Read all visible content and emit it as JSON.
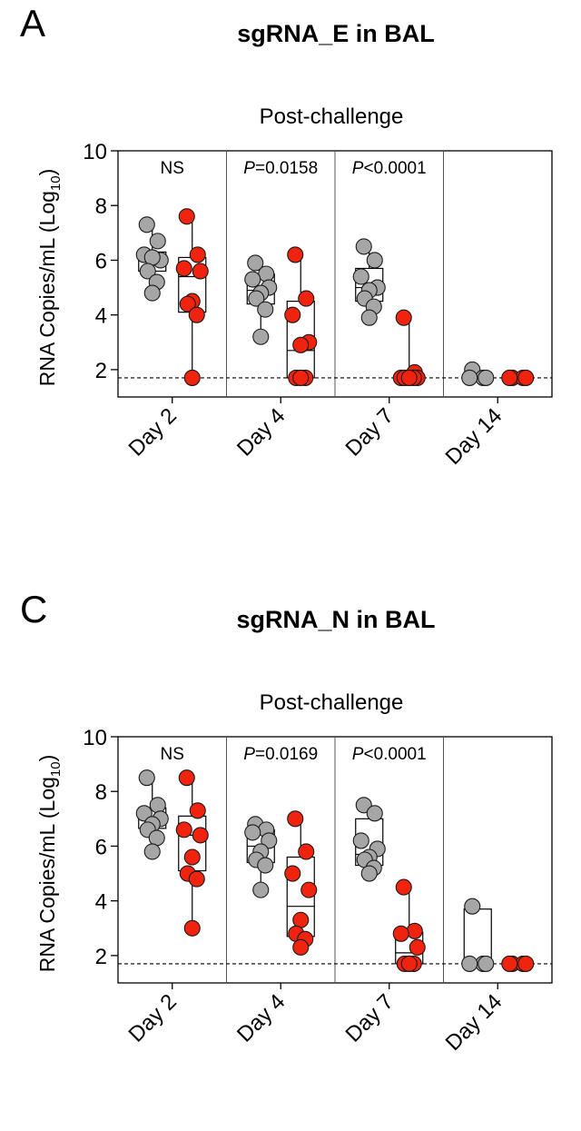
{
  "colors": {
    "vehicle": "#a6a6a6",
    "vaccine": "#f0230f",
    "stroke": "#1a1a1a"
  },
  "chart_data": [
    {
      "type": "scatter",
      "panel_label": "A",
      "title": "sgRNA_E in BAL",
      "subtitle": "Post-challenge",
      "ylabel": "RNA Copies/mL (Log",
      "ylabel_sub": "10",
      "ylabel_close": ")",
      "ylim": [
        1,
        10
      ],
      "yticks": [
        "2",
        "4",
        "6",
        "8",
        "10"
      ],
      "limit_of_detection": 1.7,
      "categories": [
        "Day 2",
        "Day 4",
        "Day 7",
        "Day 14"
      ],
      "stats": [
        {
          "italic": "",
          "text": "NS"
        },
        {
          "italic": "P",
          "text": "=0.0158"
        },
        {
          "italic": "P",
          "text": "<0.0001"
        },
        {
          "italic": "",
          "text": ""
        }
      ],
      "series": [
        {
          "name": "gray",
          "color": "#a6a6a6",
          "values": [
            [
              7.3,
              6.7,
              6.2,
              6.0,
              6.1,
              5.6,
              5.2,
              4.8
            ],
            [
              5.9,
              5.5,
              5.3,
              5.0,
              4.8,
              4.6,
              4.2,
              3.2
            ],
            [
              6.5,
              6.0,
              5.4,
              5.0,
              4.9,
              4.6,
              4.3,
              3.9
            ],
            [
              2.0,
              1.7,
              1.7,
              1.7
            ]
          ],
          "box": [
            {
              "min": 4.8,
              "q1": 5.6,
              "median": 6.0,
              "q3": 6.3,
              "max": 7.3
            },
            {
              "min": 3.2,
              "q1": 4.4,
              "median": 4.9,
              "q3": 5.5,
              "max": 5.9
            },
            {
              "min": 3.9,
              "q1": 4.5,
              "median": 5.0,
              "q3": 5.7,
              "max": 6.5
            },
            {
              "min": 1.7,
              "q1": 1.7,
              "median": 1.7,
              "q3": 1.9,
              "max": 2.0
            }
          ]
        },
        {
          "name": "red",
          "color": "#f0230f",
          "values": [
            [
              7.6,
              6.2,
              5.7,
              5.6,
              4.5,
              4.4,
              4.0,
              1.7
            ],
            [
              6.2,
              4.6,
              4.0,
              3.0,
              2.9,
              1.7,
              1.7,
              1.7
            ],
            [
              3.9,
              1.9,
              1.7,
              1.7,
              1.7,
              1.7,
              1.7,
              1.7
            ],
            [
              1.7,
              1.7,
              1.7,
              1.7
            ]
          ],
          "box": [
            {
              "min": 1.7,
              "q1": 4.1,
              "median": 5.4,
              "q3": 6.1,
              "max": 7.6
            },
            {
              "min": 1.7,
              "q1": 1.7,
              "median": 2.7,
              "q3": 4.5,
              "max": 6.2
            },
            {
              "min": 1.7,
              "q1": 1.7,
              "median": 1.7,
              "q3": 1.85,
              "max": 3.9
            },
            {
              "min": 1.7,
              "q1": 1.7,
              "median": 1.7,
              "q3": 1.7,
              "max": 1.7
            }
          ]
        }
      ]
    },
    {
      "type": "scatter",
      "panel_label": "C",
      "title": "sgRNA_N in BAL",
      "subtitle": "Post-challenge",
      "ylabel": "RNA Copies/mL (Log",
      "ylabel_sub": "10",
      "ylabel_close": ")",
      "ylim": [
        1,
        10
      ],
      "yticks": [
        "2",
        "4",
        "6",
        "8",
        "10"
      ],
      "limit_of_detection": 1.7,
      "categories": [
        "Day 2",
        "Day 4",
        "Day 7",
        "Day 14"
      ],
      "stats": [
        {
          "italic": "",
          "text": "NS"
        },
        {
          "italic": "P",
          "text": "=0.0169"
        },
        {
          "italic": "P",
          "text": "<0.0001"
        },
        {
          "italic": "",
          "text": ""
        }
      ],
      "series": [
        {
          "name": "gray",
          "color": "#a6a6a6",
          "values": [
            [
              8.5,
              7.5,
              7.2,
              7.0,
              6.8,
              6.6,
              6.3,
              5.8
            ],
            [
              6.8,
              6.6,
              6.5,
              6.2,
              5.8,
              5.5,
              5.3,
              4.4
            ],
            [
              7.5,
              7.2,
              6.2,
              5.9,
              5.6,
              5.5,
              5.2,
              5.0
            ],
            [
              3.8,
              1.7,
              1.7,
              1.7
            ]
          ],
          "box": [
            {
              "min": 5.8,
              "q1": 6.65,
              "median": 7.0,
              "q3": 7.4,
              "max": 8.5
            },
            {
              "min": 4.4,
              "q1": 5.4,
              "median": 6.0,
              "q3": 6.6,
              "max": 6.8
            },
            {
              "min": 5.0,
              "q1": 5.3,
              "median": 5.7,
              "q3": 7.0,
              "max": 7.5
            },
            {
              "min": 1.7,
              "q1": 1.7,
              "median": 1.7,
              "q3": 3.7,
              "max": 3.8
            }
          ]
        },
        {
          "name": "red",
          "color": "#f0230f",
          "values": [
            [
              8.5,
              7.3,
              6.6,
              6.4,
              5.6,
              5.0,
              4.8,
              3.0
            ],
            [
              7.0,
              5.8,
              5.0,
              4.4,
              3.3,
              2.8,
              2.6,
              2.3
            ],
            [
              4.5,
              2.9,
              2.8,
              2.3,
              1.7,
              1.7,
              1.7,
              1.7
            ],
            [
              1.7,
              1.7,
              1.7,
              1.7
            ]
          ],
          "box": [
            {
              "min": 3.0,
              "q1": 5.1,
              "median": 6.4,
              "q3": 7.1,
              "max": 8.5
            },
            {
              "min": 2.3,
              "q1": 2.7,
              "median": 3.8,
              "q3": 5.6,
              "max": 7.0
            },
            {
              "min": 1.7,
              "q1": 1.7,
              "median": 2.1,
              "q3": 2.85,
              "max": 4.5
            },
            {
              "min": 1.7,
              "q1": 1.7,
              "median": 1.7,
              "q3": 1.7,
              "max": 1.7
            }
          ]
        }
      ]
    }
  ]
}
